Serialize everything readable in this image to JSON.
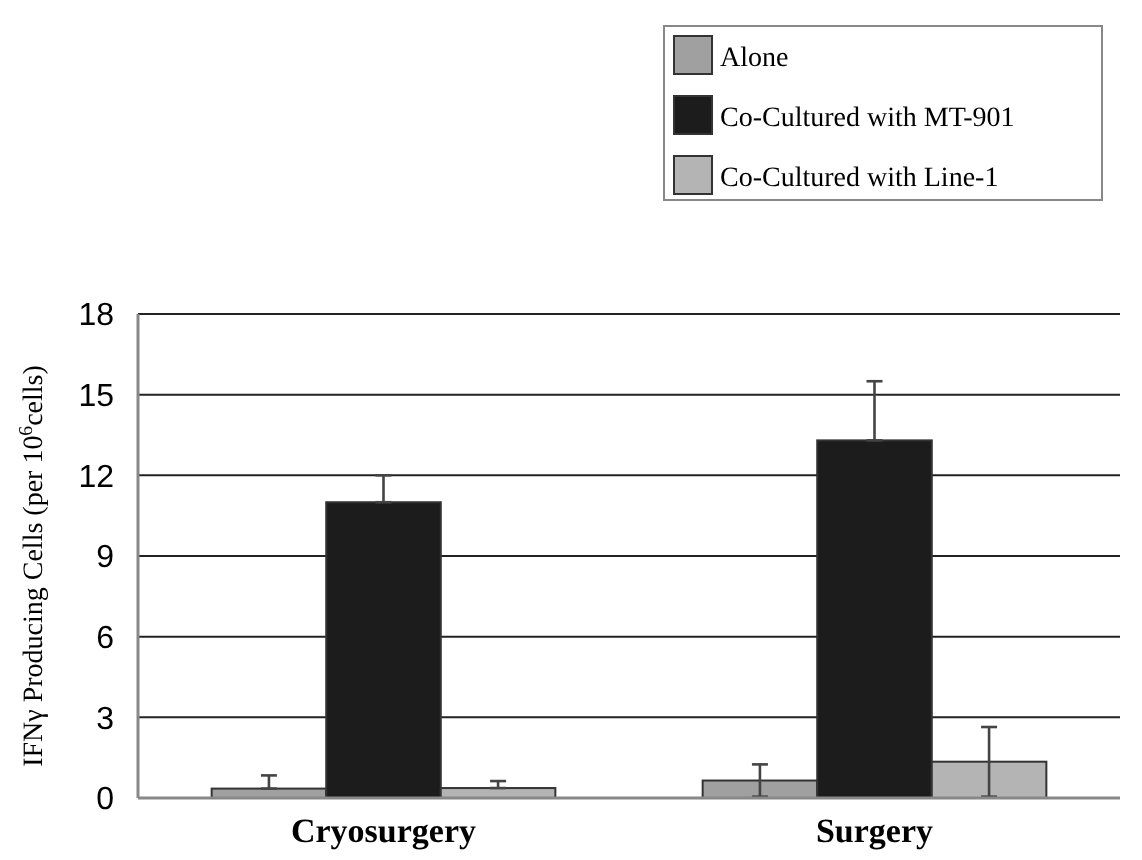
{
  "chart_data": {
    "type": "bar",
    "ylabel": "IFNγ Producing Cells (per 10$^{6}$cells)",
    "categories": [
      "Cryosurgery",
      "Surgery"
    ],
    "series": [
      {
        "name": "Alone",
        "color": "#a0a0a0",
        "values": [
          0.35,
          0.65
        ],
        "errors": [
          [
            0.35,
            0.84
          ],
          [
            0.05,
            1.25
          ]
        ]
      },
      {
        "name": "Co-Cultured with MT-901",
        "color": "#1c1c1c",
        "values": [
          11,
          13.3
        ],
        "errors": [
          [
            11,
            12
          ],
          [
            13.3,
            15.5
          ]
        ]
      },
      {
        "name": "Co-Cultured with Line-1",
        "color": "#b4b4b4",
        "values": [
          0.37,
          1.35
        ],
        "errors": [
          [
            0.37,
            0.63
          ],
          [
            0.05,
            2.64
          ]
        ]
      }
    ],
    "ylim": [
      0,
      18
    ],
    "yticks": [
      0,
      3,
      6,
      9,
      12,
      15,
      18
    ],
    "grid": "y",
    "legend": "top right"
  }
}
